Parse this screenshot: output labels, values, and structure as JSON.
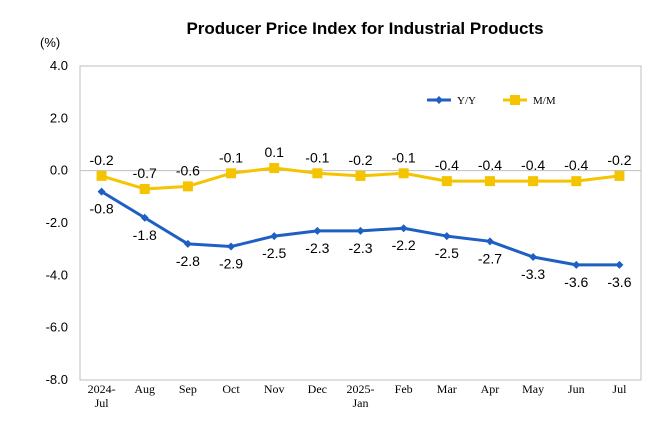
{
  "chart_data": {
    "type": "line",
    "title": "Producer Price Index for Industrial Products",
    "ylabel": "(%)",
    "xlabel": "",
    "ylim": [
      -8.0,
      4.0
    ],
    "yticks": [
      "4.0",
      "2.0",
      "0.0",
      "-2.0",
      "-4.0",
      "-6.0",
      "-8.0"
    ],
    "ytick_values": [
      4,
      2,
      0,
      -2,
      -4,
      -6,
      -8
    ],
    "categories": [
      [
        "2024-",
        "Jul"
      ],
      [
        "Aug"
      ],
      [
        "Sep"
      ],
      [
        "Oct"
      ],
      [
        "Nov"
      ],
      [
        "Dec"
      ],
      [
        "2025-",
        "Jan"
      ],
      [
        "Feb"
      ],
      [
        "Mar"
      ],
      [
        "Apr"
      ],
      [
        "May"
      ],
      [
        "Jun"
      ],
      [
        "Jul"
      ]
    ],
    "legend_position": "top-right",
    "grid": false,
    "series": [
      {
        "name": "Y/Y",
        "color": "#1f5fc4",
        "marker": "diamond",
        "values": [
          -0.8,
          -1.8,
          -2.8,
          -2.9,
          -2.5,
          -2.3,
          -2.3,
          -2.2,
          -2.5,
          -2.7,
          -3.3,
          -3.6,
          -3.6
        ],
        "labels": [
          "-0.8",
          "-1.8",
          "-2.8",
          "-2.9",
          "-2.5",
          "-2.3",
          "-2.3",
          "-2.2",
          "-2.5",
          "-2.7",
          "-3.3",
          "-3.6",
          "-3.6"
        ]
      },
      {
        "name": "M/M",
        "color": "#f5c400",
        "marker": "square",
        "values": [
          -0.2,
          -0.7,
          -0.6,
          -0.1,
          0.1,
          -0.1,
          -0.2,
          -0.1,
          -0.4,
          -0.4,
          -0.4,
          -0.4,
          -0.2
        ],
        "labels": [
          "-0.2",
          "-0.7",
          "-0.6",
          "-0.1",
          "0.1",
          "-0.1",
          "-0.2",
          "-0.1",
          "-0.4",
          "-0.4",
          "-0.4",
          "-0.4",
          "-0.2"
        ]
      }
    ]
  }
}
